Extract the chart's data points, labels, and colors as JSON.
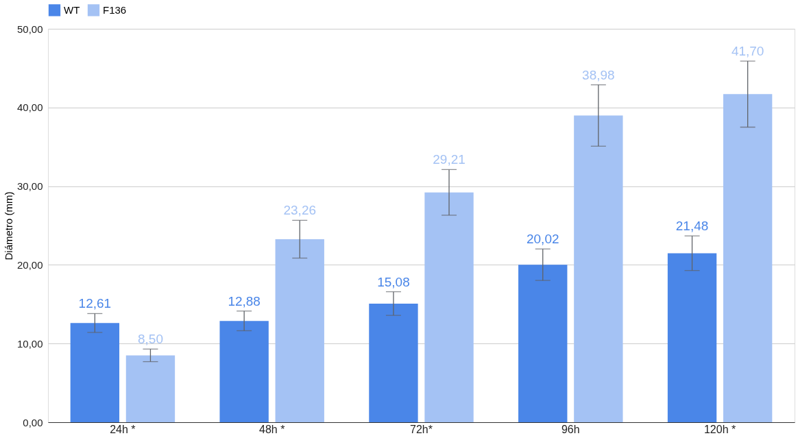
{
  "chart_data": {
    "type": "bar",
    "ylabel": "Diámetro (mm)",
    "categories": [
      "24h *",
      "48h *",
      "72h*",
      "96h",
      "120h *"
    ],
    "series": [
      {
        "name": "WT",
        "color": "#4a86e8",
        "values": [
          12.61,
          12.88,
          15.08,
          20.02,
          21.48
        ],
        "errors": [
          1.2,
          1.25,
          1.5,
          2.0,
          2.2
        ],
        "value_labels": [
          "12,61",
          "12,88",
          "15,08",
          "20,02",
          "21,48"
        ]
      },
      {
        "name": "F136",
        "color": "#a4c2f4",
        "values": [
          8.5,
          23.26,
          29.21,
          38.98,
          41.7
        ],
        "errors": [
          0.8,
          2.4,
          2.9,
          3.9,
          4.2
        ],
        "value_labels": [
          "8,50",
          "23,26",
          "29,21",
          "38,98",
          "41,70"
        ]
      }
    ],
    "ylim": [
      0,
      50
    ],
    "yticks": [
      {
        "value": 0,
        "label": "0,00"
      },
      {
        "value": 10,
        "label": "10,00"
      },
      {
        "value": 20,
        "label": "20,00"
      },
      {
        "value": 30,
        "label": "30,00"
      },
      {
        "value": 40,
        "label": "40,00"
      },
      {
        "value": 50,
        "label": "50,00"
      }
    ],
    "grid": "y",
    "legend": "top"
  }
}
